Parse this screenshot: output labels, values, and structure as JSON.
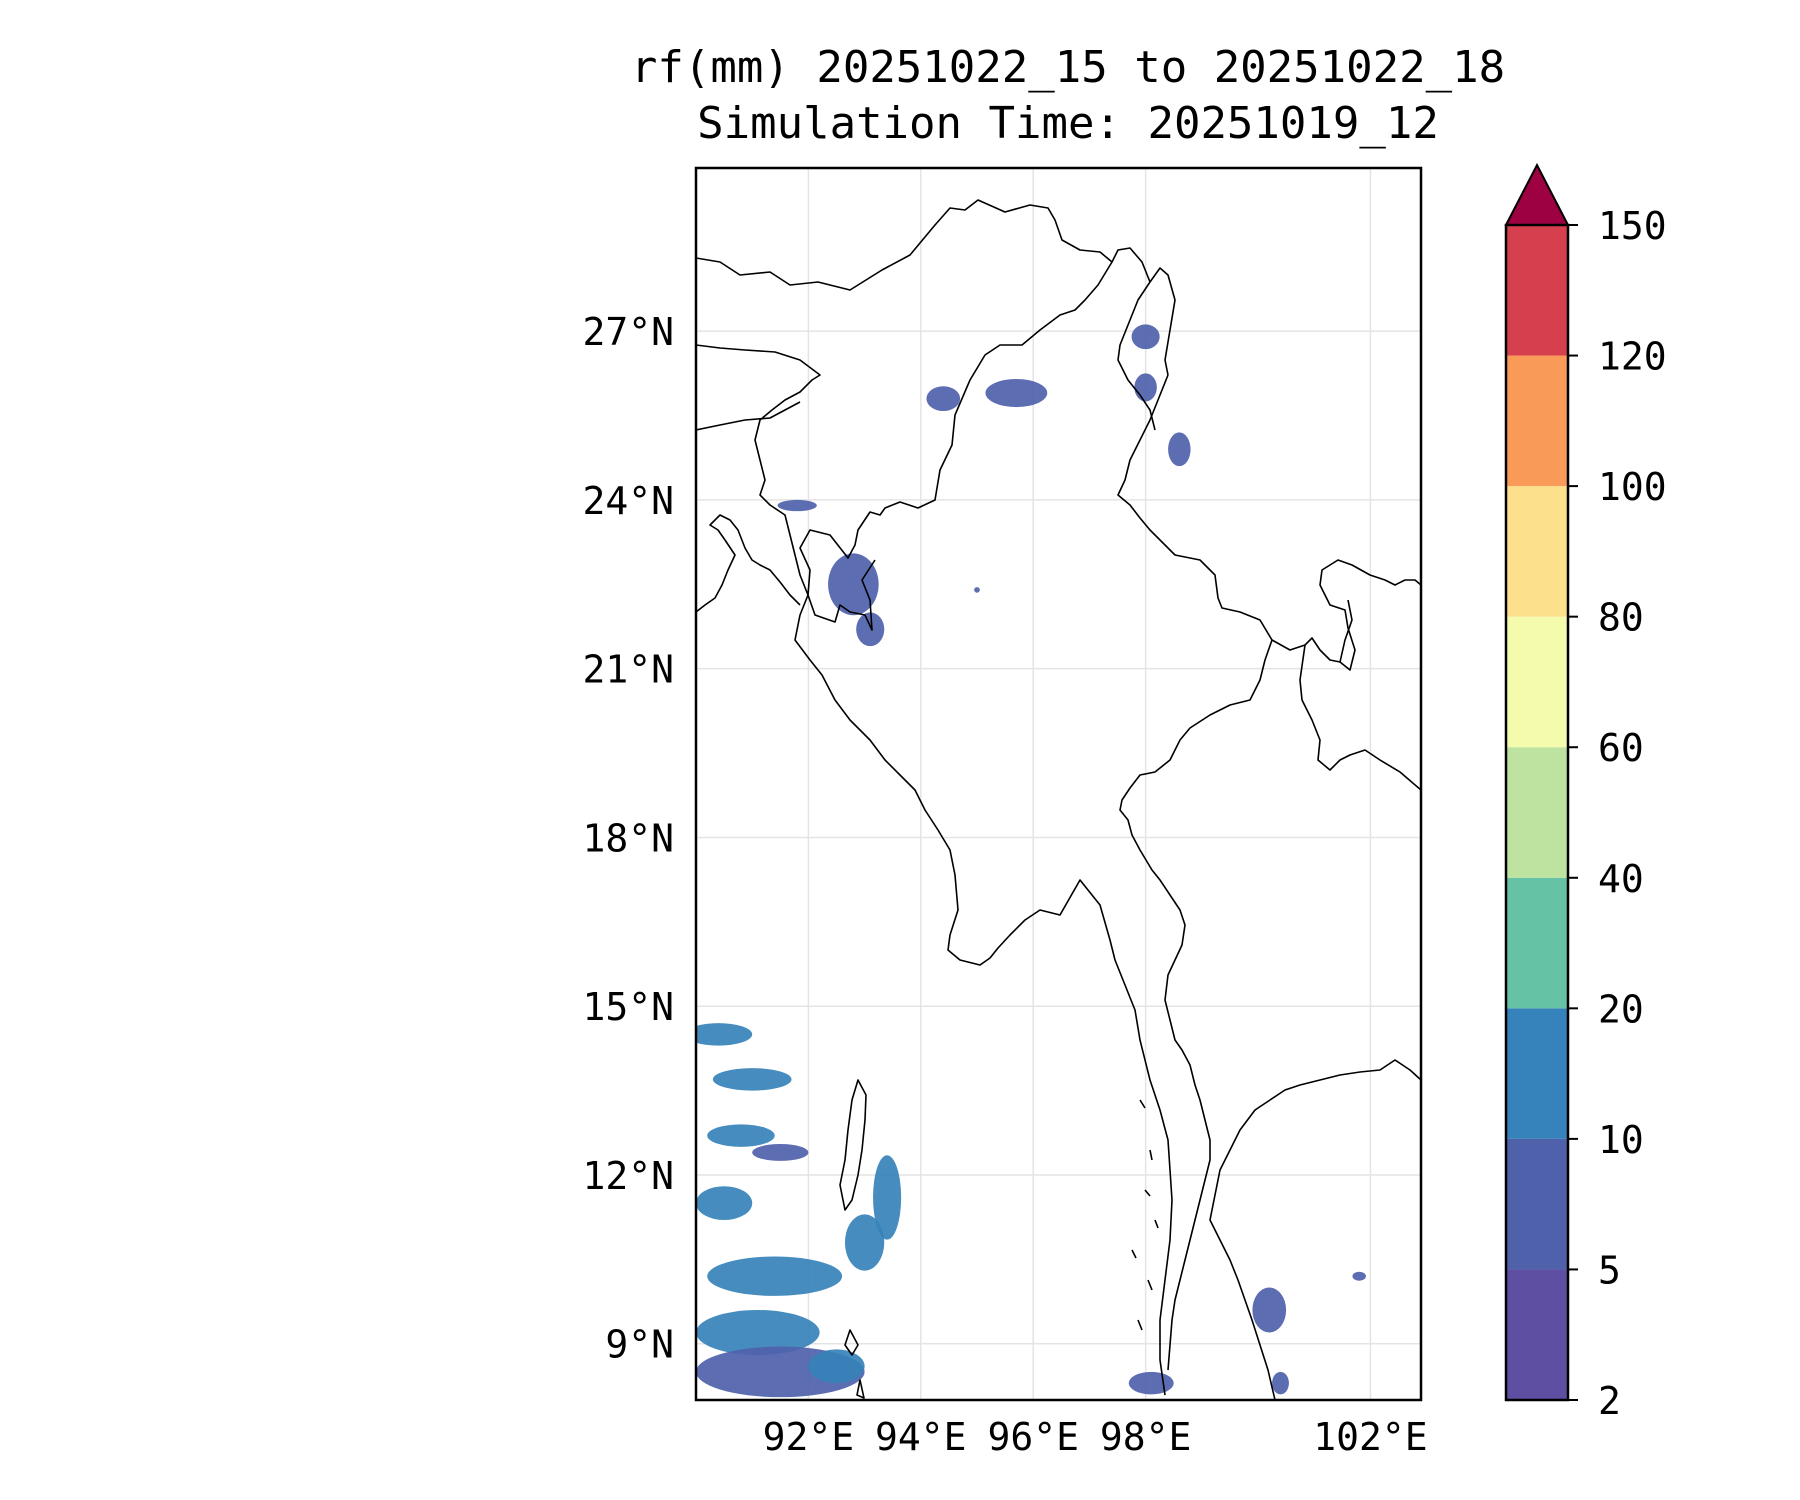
{
  "title": {
    "line1": "rf(mm) 20251022_15 to 20251022_18",
    "line2": "Simulation Time: 20251019_12"
  },
  "map": {
    "lon_range": [
      90.0,
      102.9
    ],
    "lat_range": [
      8.0,
      29.9
    ],
    "lat_ticks": [
      {
        "value": 27,
        "label": "27°N"
      },
      {
        "value": 24,
        "label": "24°N"
      },
      {
        "value": 21,
        "label": "21°N"
      },
      {
        "value": 18,
        "label": "18°N"
      },
      {
        "value": 15,
        "label": "15°N"
      },
      {
        "value": 12,
        "label": "12°N"
      },
      {
        "value": 9,
        "label": "9°N"
      }
    ],
    "lon_ticks": [
      {
        "value": 92,
        "label": "92°E"
      },
      {
        "value": 94,
        "label": "94°E"
      },
      {
        "value": 96,
        "label": "96°E"
      },
      {
        "value": 98,
        "label": "98°E"
      },
      {
        "value": 102,
        "label": "102°E"
      }
    ],
    "grid": true,
    "rain_areas": [
      {
        "lon": 92.8,
        "lat": 22.5,
        "rx": 0.45,
        "ry": 0.55,
        "level": 1
      },
      {
        "lon": 93.1,
        "lat": 21.7,
        "rx": 0.25,
        "ry": 0.3,
        "level": 1
      },
      {
        "lon": 95.7,
        "lat": 25.9,
        "rx": 0.55,
        "ry": 0.25,
        "level": 1
      },
      {
        "lon": 94.4,
        "lat": 25.8,
        "rx": 0.3,
        "ry": 0.22,
        "level": 1
      },
      {
        "lon": 98.0,
        "lat": 26.9,
        "rx": 0.25,
        "ry": 0.22,
        "level": 1
      },
      {
        "lon": 98.0,
        "lat": 26.0,
        "rx": 0.2,
        "ry": 0.25,
        "level": 1
      },
      {
        "lon": 98.6,
        "lat": 24.9,
        "rx": 0.2,
        "ry": 0.3,
        "level": 1
      },
      {
        "lon": 91.8,
        "lat": 23.9,
        "rx": 0.35,
        "ry": 0.1,
        "level": 1
      },
      {
        "lon": 95.0,
        "lat": 22.4,
        "rx": 0.05,
        "ry": 0.05,
        "level": 1
      },
      {
        "lon": 93.4,
        "lat": 11.6,
        "rx": 0.25,
        "ry": 0.75,
        "level": 2
      },
      {
        "lon": 93.0,
        "lat": 10.8,
        "rx": 0.35,
        "ry": 0.5,
        "level": 2
      },
      {
        "lon": 90.4,
        "lat": 14.5,
        "rx": 0.6,
        "ry": 0.2,
        "level": 2
      },
      {
        "lon": 91.0,
        "lat": 13.7,
        "rx": 0.7,
        "ry": 0.2,
        "level": 2
      },
      {
        "lon": 90.8,
        "lat": 12.7,
        "rx": 0.6,
        "ry": 0.2,
        "level": 2
      },
      {
        "lon": 91.5,
        "lat": 12.4,
        "rx": 0.5,
        "ry": 0.15,
        "level": 1
      },
      {
        "lon": 90.5,
        "lat": 11.5,
        "rx": 0.5,
        "ry": 0.3,
        "level": 2
      },
      {
        "lon": 91.4,
        "lat": 10.2,
        "rx": 1.2,
        "ry": 0.35,
        "level": 2
      },
      {
        "lon": 91.1,
        "lat": 9.2,
        "rx": 1.1,
        "ry": 0.4,
        "level": 2
      },
      {
        "lon": 91.5,
        "lat": 8.5,
        "rx": 1.5,
        "ry": 0.45,
        "level": 1
      },
      {
        "lon": 92.5,
        "lat": 8.6,
        "rx": 0.5,
        "ry": 0.3,
        "level": 2
      },
      {
        "lon": 98.1,
        "lat": 8.3,
        "rx": 0.4,
        "ry": 0.2,
        "level": 1
      },
      {
        "lon": 100.2,
        "lat": 9.6,
        "rx": 0.3,
        "ry": 0.4,
        "level": 1
      },
      {
        "lon": 100.4,
        "lat": 8.3,
        "rx": 0.15,
        "ry": 0.2,
        "level": 1
      },
      {
        "lon": 101.8,
        "lat": 10.2,
        "rx": 0.12,
        "ry": 0.08,
        "level": 1
      }
    ]
  },
  "colorbar": {
    "levels": [
      {
        "label": "2",
        "color": "#5e4fa2"
      },
      {
        "label": "5",
        "color": "#4f61ab"
      },
      {
        "label": "10",
        "color": "#3682ba"
      },
      {
        "label": "20",
        "color": "#66c2a5"
      },
      {
        "label": "40",
        "color": "#bee3a0"
      },
      {
        "label": "60",
        "color": "#f4fbad"
      },
      {
        "label": "80",
        "color": "#fde08b"
      },
      {
        "label": "100",
        "color": "#f99a59"
      },
      {
        "label": "120",
        "color": "#d6404e"
      }
    ],
    "top_label": "150",
    "extend_color": "#9e0142"
  }
}
